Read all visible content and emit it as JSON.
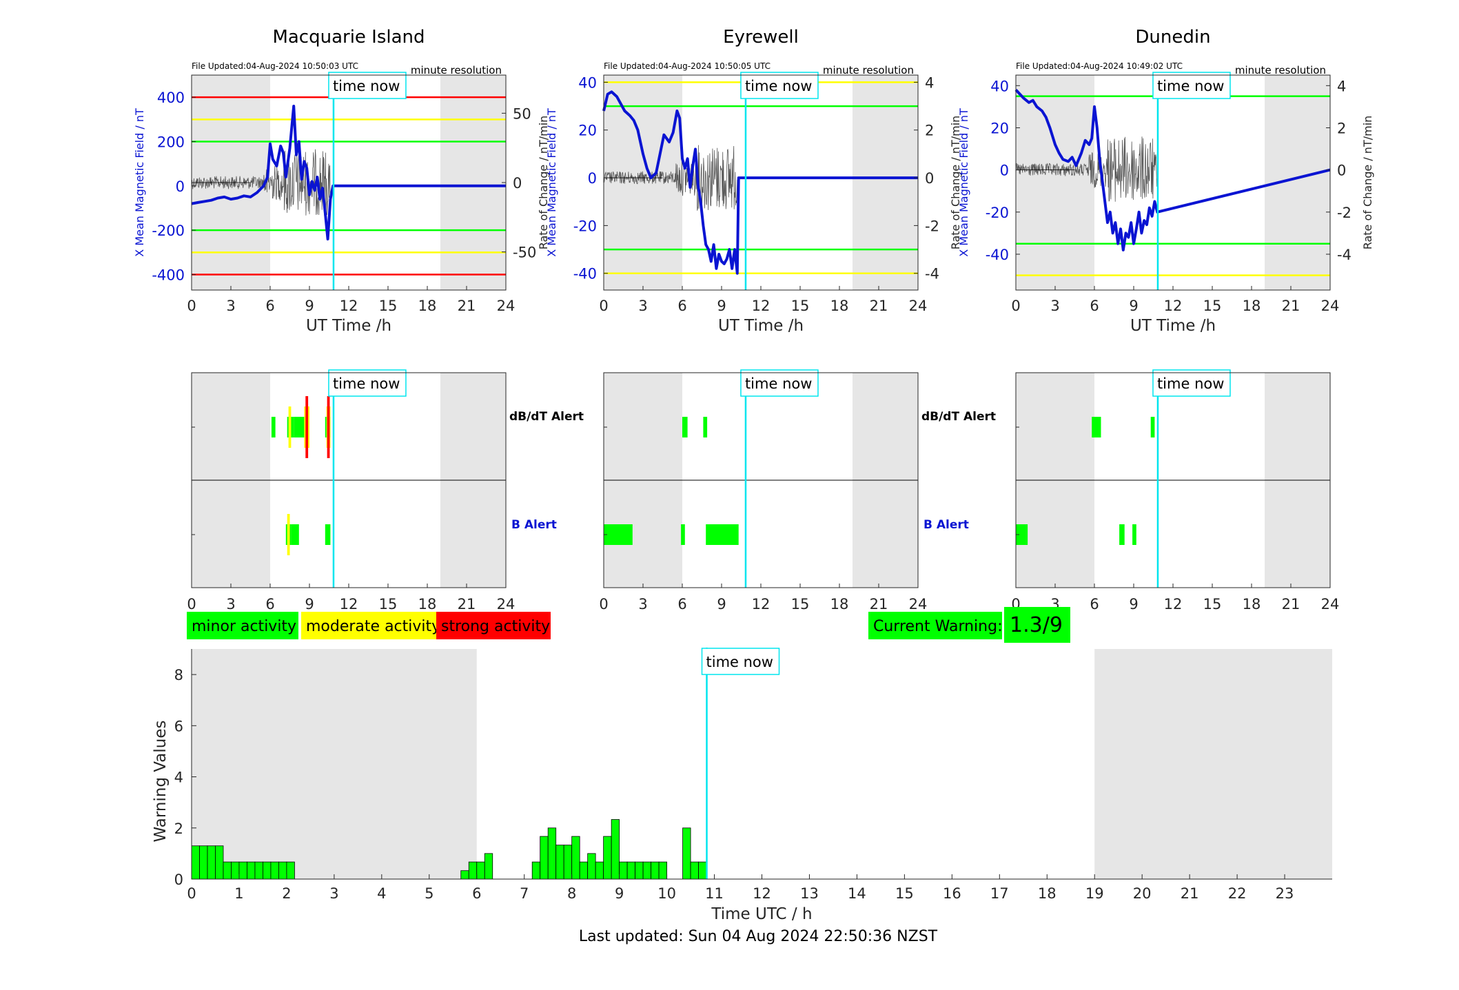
{
  "colors": {
    "night_shade": "#e6e6e6",
    "blue_trace": "#0a14d2",
    "rate_trace": "#000000",
    "minor": "#00ff00",
    "moderate": "#ffff00",
    "strong": "#ff0000",
    "time_now_line": "#00e5ee",
    "bar_fill": "#00ff00"
  },
  "panels": [
    {
      "title": "Macquarie Island",
      "file_updated": "File Updated:04-Aug-2024 10:50:03 UTC",
      "resolution": "minute resolution",
      "ylabel_left": "X Mean Magnetic Field / nT",
      "ylabel_right": "Rate of Change / nT/min",
      "left_ticks": [
        "400",
        "200",
        "0",
        "-200",
        "-400"
      ],
      "right_ticks": [
        "50",
        "0",
        "-50"
      ],
      "xlabel": "UT Time /h",
      "xticks": [
        "0",
        "3",
        "6",
        "9",
        "12",
        "15",
        "18",
        "21",
        "24"
      ],
      "time_now": "time now"
    },
    {
      "title": "Eyrewell",
      "file_updated": "File Updated:04-Aug-2024 10:50:05 UTC",
      "resolution": "minute resolution",
      "ylabel_left": "X Mean Magnetic Field / nT",
      "ylabel_right": "Rate of Change / nT/min",
      "left_ticks": [
        "40",
        "20",
        "0",
        "-20",
        "-40"
      ],
      "right_ticks": [
        "4",
        "2",
        "0",
        "-2",
        "-4"
      ],
      "xlabel": "UT Time /h",
      "xticks": [
        "0",
        "3",
        "6",
        "9",
        "12",
        "15",
        "18",
        "21",
        "24"
      ],
      "time_now": "time now"
    },
    {
      "title": "Dunedin",
      "file_updated": "File Updated:04-Aug-2024 10:49:02 UTC",
      "resolution": "minute resolution",
      "ylabel_left": "X Mean Magnetic Field / nT",
      "ylabel_right": "Rate of Change / nT/min",
      "left_ticks": [
        "40",
        "20",
        "0",
        "-20",
        "-40"
      ],
      "right_ticks": [
        "4",
        "2",
        "0",
        "-2",
        "-4"
      ],
      "xlabel": "UT Time /h",
      "xticks": [
        "0",
        "3",
        "6",
        "9",
        "12",
        "15",
        "18",
        "21",
        "24"
      ],
      "time_now": "time now"
    }
  ],
  "alert_panels": {
    "dbdt_label": "dB/dT Alert",
    "b_label": "B Alert",
    "time_now": "time now",
    "xticks": [
      "0",
      "3",
      "6",
      "9",
      "12",
      "15",
      "18",
      "21",
      "24"
    ]
  },
  "legend": {
    "minor": "minor activity",
    "moderate": "moderate activity",
    "strong": "strong activity"
  },
  "current_warning": {
    "label": "Current Warning:",
    "value": "1.3/9"
  },
  "warning_chart": {
    "ylabel": "Warning Values",
    "xlabel": "Time UTC / h",
    "time_now": "time now",
    "yticks": [
      "0",
      "2",
      "4",
      "6",
      "8"
    ],
    "xticks": [
      "0",
      "1",
      "2",
      "3",
      "4",
      "5",
      "6",
      "7",
      "8",
      "9",
      "10",
      "11",
      "12",
      "13",
      "14",
      "15",
      "16",
      "17",
      "18",
      "19",
      "20",
      "21",
      "22",
      "23"
    ]
  },
  "footer": "Last updated: Sun 04 Aug 2024 22:50:36 NZST",
  "chart_data": [
    {
      "type": "line",
      "title": "Macquarie Island",
      "xlabel": "UT Time /h",
      "ylabel": "X Mean Magnetic Field / nT",
      "ylabel_right": "Rate of Change / nT/min",
      "xlim": [
        0,
        24
      ],
      "ylim": [
        -470,
        500
      ],
      "ylim_right": [
        -77.5,
        77.5
      ],
      "night_shade_hours": [
        [
          0,
          6
        ],
        [
          19,
          24
        ]
      ],
      "threshold_lines": [
        {
          "value": 400,
          "color": "red"
        },
        {
          "value": 300,
          "color": "yellow"
        },
        {
          "value": 200,
          "color": "green"
        },
        {
          "value": -200,
          "color": "green"
        },
        {
          "value": -300,
          "color": "yellow"
        },
        {
          "value": -400,
          "color": "red"
        }
      ],
      "time_now_hour": 10.84,
      "series": [
        {
          "x": [
            0,
            0.5,
            1,
            1.5,
            2,
            2.5,
            3,
            3.5,
            4,
            4.5,
            5,
            5.5,
            5.8,
            6,
            6.2,
            6.5,
            6.8,
            7,
            7.2,
            7.5,
            7.8,
            8,
            8.2,
            8.4,
            8.6,
            8.8,
            9,
            9.2,
            9.4,
            9.6,
            9.8,
            10,
            10.2,
            10.4,
            10.6,
            10.8,
            24
          ],
          "values": [
            -80,
            -75,
            -70,
            -65,
            -55,
            -50,
            -60,
            -55,
            -45,
            -50,
            -30,
            0,
            40,
            190,
            120,
            90,
            180,
            150,
            40,
            170,
            360,
            140,
            200,
            30,
            110,
            80,
            -40,
            20,
            -20,
            40,
            -60,
            -10,
            -120,
            -240,
            -60,
            0,
            0
          ]
        }
      ]
    },
    {
      "type": "line",
      "title": "Eyrewell",
      "xlabel": "UT Time /h",
      "ylabel": "X Mean Magnetic Field / nT",
      "ylabel_right": "Rate of Change / nT/min",
      "xlim": [
        0,
        24
      ],
      "ylim": [
        -47,
        43
      ],
      "ylim_right": [
        -4.7,
        4.3
      ],
      "night_shade_hours": [
        [
          0,
          6
        ],
        [
          19,
          24
        ]
      ],
      "threshold_lines": [
        {
          "value": 40,
          "color": "yellow"
        },
        {
          "value": 30,
          "color": "green"
        },
        {
          "value": -30,
          "color": "green"
        },
        {
          "value": -40,
          "color": "yellow"
        }
      ],
      "time_now_hour": 10.84,
      "series": [
        {
          "x": [
            0,
            0.3,
            0.6,
            1,
            1.3,
            1.6,
            2,
            2.3,
            2.6,
            3,
            3.3,
            3.6,
            4,
            4.3,
            4.6,
            5,
            5.3,
            5.6,
            5.8,
            6,
            6.2,
            6.4,
            6.6,
            6.8,
            7,
            7.2,
            7.4,
            7.6,
            7.8,
            8,
            8.2,
            8.4,
            8.6,
            8.8,
            9,
            9.2,
            9.4,
            9.6,
            9.8,
            10,
            10.2,
            10.3,
            24
          ],
          "values": [
            28,
            35,
            36,
            34,
            31,
            28,
            26,
            24,
            20,
            10,
            4,
            0,
            2,
            10,
            18,
            15,
            19,
            28,
            25,
            8,
            4,
            8,
            -4,
            5,
            12,
            -3,
            -10,
            -20,
            -28,
            -30,
            -35,
            -28,
            -38,
            -32,
            -35,
            -36,
            -34,
            -30,
            -38,
            -30,
            -40,
            0,
            0
          ]
        }
      ]
    },
    {
      "type": "line",
      "title": "Dunedin",
      "xlabel": "UT Time /h",
      "ylabel": "X Mean Magnetic Field / nT",
      "ylabel_right": "Rate of Change / nT/min",
      "xlim": [
        0,
        24
      ],
      "ylim": [
        -57,
        45
      ],
      "ylim_right": [
        -5.7,
        4.5
      ],
      "night_shade_hours": [
        [
          0,
          6
        ],
        [
          19,
          24
        ]
      ],
      "threshold_lines": [
        {
          "value": 35,
          "color": "green"
        },
        {
          "value": -35,
          "color": "green"
        },
        {
          "value": -50,
          "color": "yellow"
        }
      ],
      "time_now_hour": 10.84,
      "series": [
        {
          "x": [
            0,
            0.3,
            0.6,
            1,
            1.3,
            1.6,
            2,
            2.3,
            2.6,
            3,
            3.3,
            3.6,
            4,
            4.3,
            4.6,
            5,
            5.3,
            5.6,
            5.8,
            6,
            6.2,
            6.4,
            6.6,
            6.8,
            7,
            7.2,
            7.4,
            7.6,
            7.8,
            8,
            8.2,
            8.4,
            8.6,
            8.8,
            9,
            9.2,
            9.4,
            9.6,
            9.8,
            10,
            10.2,
            10.4,
            10.6,
            10.8,
            24
          ],
          "values": [
            38,
            36,
            34,
            32,
            33,
            30,
            28,
            25,
            20,
            12,
            8,
            5,
            4,
            6,
            2,
            8,
            14,
            12,
            15,
            30,
            20,
            5,
            -5,
            -15,
            -25,
            -20,
            -30,
            -25,
            -35,
            -28,
            -38,
            -30,
            -32,
            -25,
            -35,
            -28,
            -20,
            -30,
            -24,
            -26,
            -18,
            -22,
            -15,
            -20,
            0
          ]
        }
      ]
    },
    {
      "type": "bar",
      "title": "",
      "xlabel": "Time UTC / h",
      "ylabel": "Warning Values",
      "xlim": [
        0,
        24
      ],
      "ylim": [
        0,
        9
      ],
      "night_shade_hours": [
        [
          0,
          6
        ],
        [
          19,
          24
        ]
      ],
      "time_now_hour": 10.84,
      "bar_width_hours": 0.1667,
      "series": [
        {
          "x": [
            0,
            0.1667,
            0.3333,
            0.5,
            0.6667,
            0.8333,
            1,
            1.1667,
            1.3333,
            1.5,
            1.6667,
            1.8333,
            2,
            5.6667,
            5.8333,
            6,
            6.1667,
            7.1667,
            7.3333,
            7.5,
            7.6667,
            7.8333,
            8,
            8.1667,
            8.3333,
            8.5,
            8.6667,
            8.8333,
            9,
            9.1667,
            9.3333,
            9.5,
            9.6667,
            9.8333,
            10.3333,
            10.5,
            10.6667
          ],
          "values": [
            1.3,
            1.3,
            1.3,
            1.3,
            0.67,
            0.67,
            0.67,
            0.67,
            0.67,
            0.67,
            0.67,
            0.67,
            0.67,
            0.33,
            0.67,
            0.67,
            1.0,
            0.67,
            1.67,
            2.0,
            1.33,
            1.33,
            1.67,
            0.67,
            1.0,
            0.67,
            1.67,
            2.33,
            0.67,
            0.67,
            0.67,
            0.67,
            0.67,
            0.67,
            2.0,
            0.67,
            0.67
          ]
        }
      ]
    }
  ]
}
